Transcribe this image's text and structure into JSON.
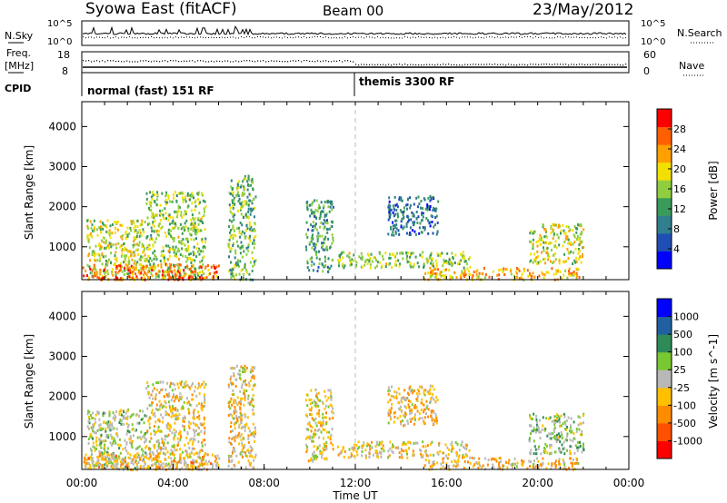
{
  "header": {
    "title": "Syowa East (fitACF)",
    "beam": "Beam 00",
    "date": "23/May/2012"
  },
  "noise_panel": {
    "left_label": "N.Sky",
    "right_label": "N.Search",
    "left_ticks": [
      "10^5",
      "10^0"
    ],
    "right_ticks": [
      "10^5",
      "10^0"
    ]
  },
  "freq_panel": {
    "left_label_line1": "Freq.",
    "left_label_line2": "[MHz]",
    "right_label": "Nave",
    "left_ticks": [
      "18",
      "8"
    ],
    "right_ticks": [
      "60",
      "0"
    ]
  },
  "cpid": {
    "label": "CPID",
    "modes": [
      {
        "name": "normal (fast) 151 RF",
        "start_hour": 0
      },
      {
        "name": "themis 3300 RF",
        "start_hour": 12
      }
    ]
  },
  "colors": {
    "power_scale": [
      "#0000ff",
      "#1f4fb4",
      "#2f7f8f",
      "#3a9a5a",
      "#8fcf3f",
      "#f2e000",
      "#ffa000",
      "#ff5f00",
      "#ff0000"
    ],
    "velocity_scale": [
      "#ff0000",
      "#ff5000",
      "#ff8c00",
      "#ffc000",
      "#b8b8b8",
      "#78c832",
      "#2e8b57",
      "#2060a0",
      "#0000ff"
    ]
  },
  "chart_data": [
    {
      "type": "heatmap",
      "name": "power-panel",
      "ylabel": "Slant Range [km]",
      "xlabel": "",
      "yticks": [
        1000,
        2000,
        3000,
        4000
      ],
      "ylim": [
        180,
        4620
      ],
      "xlim": [
        0,
        24
      ],
      "colorbar": {
        "label": "Power [dB]",
        "ticks": [
          4,
          8,
          12,
          16,
          20,
          24,
          28
        ],
        "range": [
          0,
          32
        ]
      },
      "patches": [
        {
          "t": [
            0.2,
            2.8
          ],
          "r": [
            200,
            1700
          ],
          "v": 18
        },
        {
          "t": [
            2.8,
            5.4
          ],
          "r": [
            200,
            2400
          ],
          "v": 16
        },
        {
          "t": [
            0.0,
            6.0
          ],
          "r": [
            200,
            600
          ],
          "v": 26
        },
        {
          "t": [
            6.4,
            7.6
          ],
          "r": [
            200,
            2800
          ],
          "v": 14
        },
        {
          "t": [
            9.8,
            11.0
          ],
          "r": [
            400,
            2200
          ],
          "v": 12
        },
        {
          "t": [
            11.2,
            17.0
          ],
          "r": [
            500,
            900
          ],
          "v": 16
        },
        {
          "t": [
            13.4,
            15.6
          ],
          "r": [
            1300,
            2300
          ],
          "v": 8
        },
        {
          "t": [
            15.0,
            21.8
          ],
          "r": [
            200,
            500
          ],
          "v": 22
        },
        {
          "t": [
            19.6,
            22.0
          ],
          "r": [
            600,
            1600
          ],
          "v": 18
        }
      ]
    },
    {
      "type": "heatmap",
      "name": "velocity-panel",
      "ylabel": "Slant Range [km]",
      "xlabel": "Time UT",
      "yticks": [
        1000,
        2000,
        3000,
        4000
      ],
      "ylim": [
        180,
        4620
      ],
      "xlim": [
        0,
        24
      ],
      "xticks": [
        "00:00",
        "04:00",
        "08:00",
        "12:00",
        "16:00",
        "20:00",
        "00:00"
      ],
      "colorbar": {
        "label": "Velocity [m s^-1]",
        "ticks": [
          "1000",
          "500",
          "100",
          "25",
          "-25",
          "-100",
          "-500",
          "-1000"
        ],
        "range": [
          -1200,
          1200
        ]
      },
      "patches": [
        {
          "t": [
            0.2,
            2.8
          ],
          "r": [
            200,
            1700
          ],
          "v": 100
        },
        {
          "t": [
            2.8,
            5.4
          ],
          "r": [
            200,
            2400
          ],
          "v": -150
        },
        {
          "t": [
            0.0,
            6.0
          ],
          "r": [
            200,
            600
          ],
          "v": -300
        },
        {
          "t": [
            6.4,
            7.6
          ],
          "r": [
            200,
            2800
          ],
          "v": -200
        },
        {
          "t": [
            9.8,
            11.0
          ],
          "r": [
            400,
            2200
          ],
          "v": -120
        },
        {
          "t": [
            11.2,
            17.0
          ],
          "r": [
            500,
            900
          ],
          "v": -150
        },
        {
          "t": [
            13.4,
            15.6
          ],
          "r": [
            1300,
            2300
          ],
          "v": -200
        },
        {
          "t": [
            15.0,
            21.8
          ],
          "r": [
            200,
            500
          ],
          "v": -250
        },
        {
          "t": [
            19.6,
            22.0
          ],
          "r": [
            600,
            1600
          ],
          "v": 200
        }
      ]
    }
  ]
}
